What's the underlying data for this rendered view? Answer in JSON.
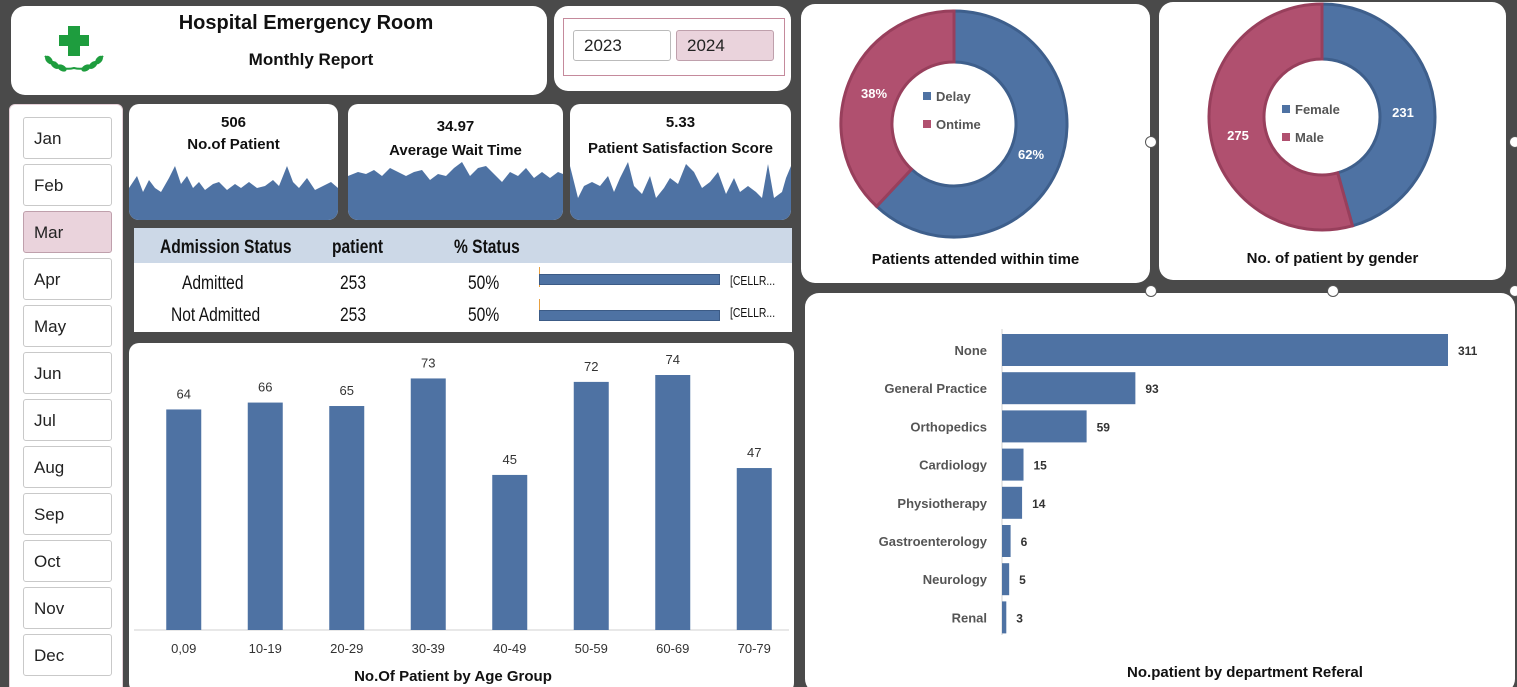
{
  "header": {
    "title": "Hospital Emergency Room",
    "subtitle": "Monthly Report"
  },
  "years": [
    {
      "label": "2023",
      "selected": false
    },
    {
      "label": "2024",
      "selected": true
    }
  ],
  "months": [
    {
      "label": "Jan",
      "selected": false
    },
    {
      "label": "Feb",
      "selected": false
    },
    {
      "label": "Mar",
      "selected": true
    },
    {
      "label": "Apr",
      "selected": false
    },
    {
      "label": "May",
      "selected": false
    },
    {
      "label": "Jun",
      "selected": false
    },
    {
      "label": "Jul",
      "selected": false
    },
    {
      "label": "Aug",
      "selected": false
    },
    {
      "label": "Sep",
      "selected": false
    },
    {
      "label": "Oct",
      "selected": false
    },
    {
      "label": "Nov",
      "selected": false
    },
    {
      "label": "Dec",
      "selected": false
    }
  ],
  "kpis": {
    "patients": {
      "value": "506",
      "label": "No.of Patient"
    },
    "wait": {
      "value": "34.97",
      "label": "Average Wait Time"
    },
    "satisfaction": {
      "value": "5.33",
      "label": "Patient Satisfaction Score"
    }
  },
  "admission": {
    "headers": [
      "Admission Status",
      "patient",
      "% Status"
    ],
    "rows": [
      {
        "status": "Admitted",
        "patient": "253",
        "pct": "50%",
        "tag": "[CELLR..."
      },
      {
        "status": "Not Admitted",
        "patient": "253",
        "pct": "50%",
        "tag": "[CELLR..."
      }
    ]
  },
  "colors": {
    "blue": "#4e72a3",
    "rose": "#b0506f",
    "selected": "#ead3dc"
  },
  "chart_data": [
    {
      "type": "bar",
      "title": "No.Of Patient by Age Group",
      "categories": [
        "0,09",
        "10-19",
        "20-29",
        "30-39",
        "40-49",
        "50-59",
        "60-69",
        "70-79"
      ],
      "values": [
        64,
        66,
        65,
        73,
        45,
        72,
        74,
        47
      ],
      "ylim": [
        0,
        80
      ],
      "grid": false
    },
    {
      "type": "pie",
      "title": "Patients attended within time",
      "labels": [
        "Delay",
        "Ontime"
      ],
      "values": [
        62,
        38
      ],
      "value_labels": [
        "62%",
        "38%"
      ],
      "colors": [
        "#4e72a3",
        "#b0506f"
      ],
      "legend": "center"
    },
    {
      "type": "pie",
      "title": "No. of patient  by gender",
      "labels": [
        "Female",
        "Male"
      ],
      "values": [
        231,
        275
      ],
      "value_labels": [
        "231",
        "275"
      ],
      "colors": [
        "#4e72a3",
        "#b0506f"
      ],
      "legend": "center"
    },
    {
      "type": "bar",
      "orientation": "horizontal",
      "title": "No.patient by department Referal",
      "categories": [
        "None",
        "General Practice",
        "Orthopedics",
        "Cardiology",
        "Physiotherapy",
        "Gastroenterology",
        "Neurology",
        "Renal"
      ],
      "values": [
        311,
        93,
        59,
        15,
        14,
        6,
        5,
        3
      ],
      "grid": false
    }
  ]
}
